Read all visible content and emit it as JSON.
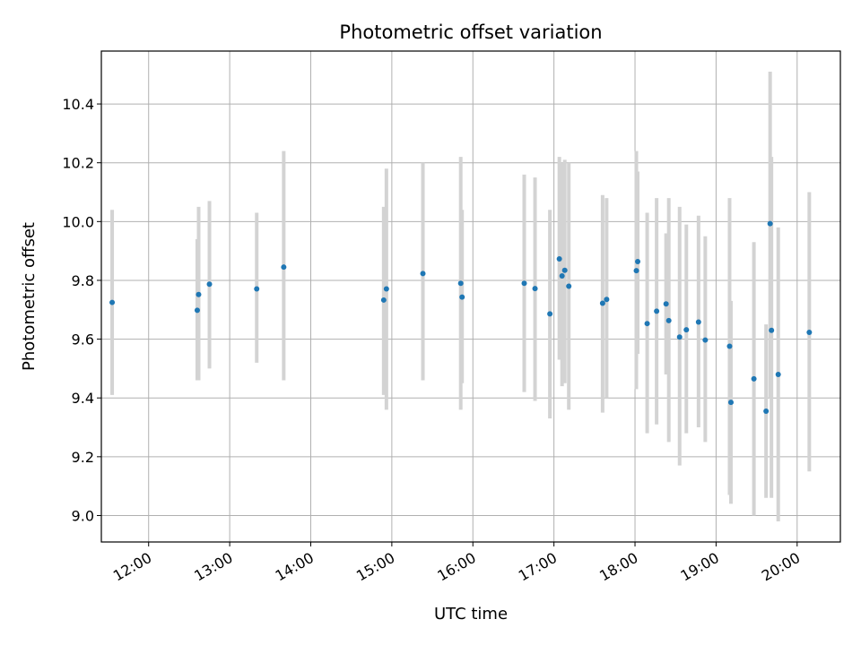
{
  "chart_data": {
    "type": "scatter",
    "title": "Photometric offset variation",
    "xlabel": "UTC time",
    "ylabel": "Photometric offset",
    "x_tick_labels": [
      "12:00",
      "13:00",
      "14:00",
      "15:00",
      "16:00",
      "17:00",
      "18:00",
      "19:00",
      "20:00"
    ],
    "x_ticks": [
      "12:00",
      "13:00",
      "14:00",
      "15:00",
      "16:00",
      "17:00",
      "18:00",
      "19:00",
      "20:00"
    ],
    "y_ticks": [
      9.0,
      9.2,
      9.4,
      9.6,
      9.8,
      10.0,
      10.2,
      10.4
    ],
    "y_tick_labels": [
      "9.0",
      "9.2",
      "9.4",
      "9.6",
      "9.8",
      "10.0",
      "10.2",
      "10.4"
    ],
    "xlim": [
      "11:25",
      "20:32"
    ],
    "ylim": [
      8.91,
      10.58
    ],
    "grid": true,
    "marker_color": "#1f77b4",
    "errorbar_color": "#d3d3d3",
    "series": [
      {
        "x": [
          "11:33",
          "12:36",
          "12:37",
          "12:45",
          "13:20",
          "13:40",
          "14:54",
          "14:56",
          "15:23",
          "15:51",
          "15:52",
          "16:38",
          "16:46",
          "16:57",
          "17:04",
          "17:06",
          "17:08",
          "17:11",
          "17:36",
          "17:39",
          "18:01",
          "18:02",
          "18:09",
          "18:16",
          "18:23",
          "18:25",
          "18:33",
          "18:38",
          "18:47",
          "18:52",
          "19:10",
          "19:11",
          "19:28",
          "19:37",
          "19:40",
          "19:41",
          "19:46",
          "20:09"
        ],
        "y": [
          9.725,
          9.698,
          9.752,
          9.787,
          9.771,
          9.845,
          9.733,
          9.771,
          9.823,
          9.79,
          9.743,
          9.79,
          9.772,
          9.686,
          9.873,
          9.815,
          9.834,
          9.78,
          9.722,
          9.735,
          9.833,
          9.864,
          9.653,
          9.695,
          9.72,
          9.663,
          9.607,
          9.632,
          9.658,
          9.597,
          9.576,
          9.385,
          9.465,
          9.355,
          9.993,
          9.63,
          9.48,
          9.623
        ],
        "y_low": [
          9.41,
          9.46,
          9.46,
          9.5,
          9.52,
          9.46,
          9.41,
          9.36,
          9.46,
          9.36,
          9.45,
          9.42,
          9.39,
          9.33,
          9.53,
          9.44,
          9.45,
          9.36,
          9.35,
          9.4,
          9.43,
          9.55,
          9.28,
          9.31,
          9.48,
          9.25,
          9.17,
          9.28,
          9.3,
          9.25,
          9.07,
          9.04,
          9.0,
          9.06,
          9.4,
          9.06,
          8.98,
          9.15
        ],
        "y_high": [
          10.04,
          9.94,
          10.05,
          10.07,
          10.03,
          10.24,
          10.05,
          10.18,
          10.2,
          10.22,
          10.04,
          10.16,
          10.15,
          10.04,
          10.22,
          10.2,
          10.21,
          10.2,
          10.09,
          10.08,
          10.24,
          10.17,
          10.03,
          10.08,
          9.96,
          10.08,
          10.05,
          9.99,
          10.02,
          9.95,
          10.08,
          9.73,
          9.93,
          9.65,
          10.51,
          10.22,
          9.98,
          10.1
        ]
      }
    ]
  }
}
